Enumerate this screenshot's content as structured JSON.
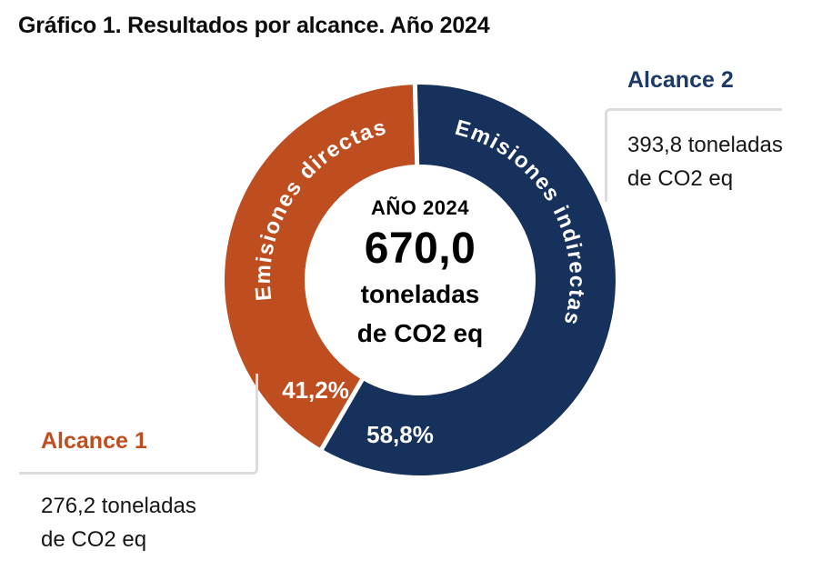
{
  "title": "Gráfico 1. Resultados por alcance. Año 2024",
  "colors": {
    "alcance1": "#BE4D1F",
    "alcance2": "#16315B",
    "bracket_line": "#DCDCDC",
    "center_text": "#000000",
    "background": "#FFFFFF"
  },
  "chart_data": {
    "type": "pie",
    "subtype": "donut",
    "title": "Gráfico 1. Resultados por alcance. Año 2024",
    "unit": "toneladas de CO2 eq",
    "total_value": 670.0,
    "center_label": {
      "line1": "AÑO 2024",
      "value": "670,0",
      "line3": "toneladas",
      "line4": "de CO2 eq"
    },
    "legend_position": "none",
    "labels_on_arc": true,
    "series": [
      {
        "name": "Alcance 1",
        "arc_label": "Emisiones directas",
        "value": 276.2,
        "percent": 41.2,
        "percent_label": "41,2%",
        "color": "#BE4D1F"
      },
      {
        "name": "Alcance 2",
        "arc_label": "Emisiones indirectas",
        "value": 393.8,
        "percent": 58.8,
        "percent_label": "58,8%",
        "color": "#16315B"
      }
    ]
  },
  "callouts": {
    "alcance1": {
      "title": "Alcance 1",
      "value_line1": "276,2 toneladas",
      "value_line2": "de CO2 eq"
    },
    "alcance2": {
      "title": "Alcance 2",
      "value_line1": "393,8 toneladas",
      "value_line2": "de CO2 eq"
    }
  }
}
